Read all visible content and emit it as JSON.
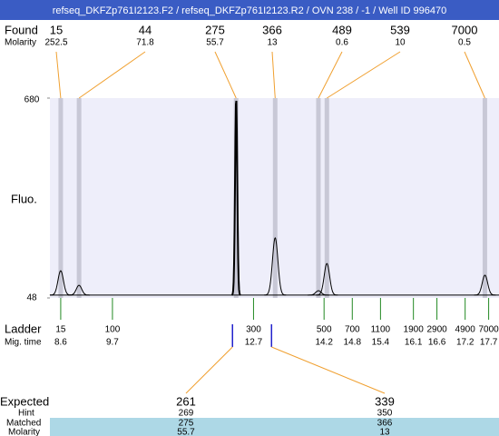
{
  "chart_data": {
    "type": "electropherogram",
    "title": "refseq_DKFZp761I2123.F2 / refseq_DKFZp761I2123.R2 / OVN 238 / -1 / Well ID 996470",
    "y_label": "Fluo.",
    "ylim": [
      48,
      680
    ],
    "yticks": [
      48,
      680
    ],
    "xlim": [
      8.37,
      17.92
    ],
    "baseline": 57,
    "found": {
      "label": "Found",
      "molarity_label": "Molarity",
      "sizes": [
        15,
        44,
        275,
        366,
        489,
        539,
        7000
      ],
      "molarity": [
        252.5,
        71.8,
        55.7,
        13,
        0.6,
        10,
        0.5
      ],
      "mig_time": [
        8.6,
        8.99,
        12.33,
        13.16,
        14.08,
        14.26,
        17.62
      ],
      "height": [
        134,
        88,
        680,
        238,
        71,
        157,
        120
      ]
    },
    "ladder": {
      "label": "Ladder",
      "mig_label": "Mig. time",
      "sizes": [
        15,
        100,
        300,
        500,
        700,
        1100,
        1900,
        2900,
        4900,
        7000
      ],
      "mig_time": [
        8.6,
        9.7,
        12.7,
        14.2,
        14.8,
        15.4,
        16.1,
        16.6,
        17.2,
        17.7
      ]
    },
    "expected": {
      "label": "Expected",
      "hint_label": "Hint",
      "matched_label": "Matched",
      "molarity_label": "Molarity",
      "columns": [
        {
          "expected": 261,
          "hint": 269,
          "matched": 275,
          "molarity": 55.7
        },
        {
          "expected": 339,
          "hint": 350,
          "matched": 366,
          "molarity": 13
        }
      ]
    }
  }
}
